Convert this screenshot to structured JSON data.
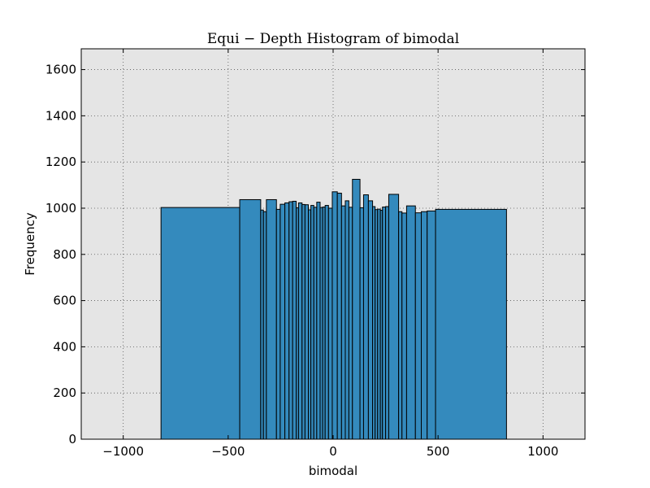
{
  "chart_data": {
    "type": "bar",
    "title": "Equi − Depth Histogram of bimodal",
    "xlabel": "bimodal",
    "ylabel": "Frequency",
    "xlim": [
      -1200,
      1200
    ],
    "ylim": [
      0,
      1690
    ],
    "xticks": [
      -1000,
      -500,
      0,
      500,
      1000
    ],
    "xtick_labels": [
      "−1000",
      "−500",
      "0",
      "500",
      "1000"
    ],
    "yticks": [
      0,
      200,
      400,
      600,
      800,
      1000,
      1200,
      1400,
      1600
    ],
    "ytick_labels": [
      "0",
      "200",
      "400",
      "600",
      "800",
      "1000",
      "1200",
      "1400",
      "1600"
    ],
    "grid": true,
    "legend": "none",
    "colors": {
      "bar_fill": "#348abd",
      "bar_edge": "#000000",
      "plot_background": "#e5e5e5",
      "grid": "#555555"
    },
    "bins": [
      {
        "left": -820,
        "right": -445,
        "count": 1003
      },
      {
        "left": -445,
        "right": -345,
        "count": 1037
      },
      {
        "left": -345,
        "right": -332,
        "count": 992
      },
      {
        "left": -332,
        "right": -318,
        "count": 985
      },
      {
        "left": -318,
        "right": -270,
        "count": 1037
      },
      {
        "left": -270,
        "right": -252,
        "count": 995
      },
      {
        "left": -252,
        "right": -230,
        "count": 1017
      },
      {
        "left": -230,
        "right": -210,
        "count": 1023
      },
      {
        "left": -210,
        "right": -193,
        "count": 1028
      },
      {
        "left": -193,
        "right": -176,
        "count": 1030
      },
      {
        "left": -176,
        "right": -165,
        "count": 1002
      },
      {
        "left": -165,
        "right": -148,
        "count": 1023
      },
      {
        "left": -148,
        "right": -134,
        "count": 1016
      },
      {
        "left": -134,
        "right": -118,
        "count": 1015
      },
      {
        "left": -118,
        "right": -106,
        "count": 993
      },
      {
        "left": -106,
        "right": -92,
        "count": 1012
      },
      {
        "left": -92,
        "right": -78,
        "count": 1004
      },
      {
        "left": -78,
        "right": -62,
        "count": 1026
      },
      {
        "left": -62,
        "right": -50,
        "count": 1003
      },
      {
        "left": -50,
        "right": -38,
        "count": 1005
      },
      {
        "left": -38,
        "right": -22,
        "count": 1012
      },
      {
        "left": -22,
        "right": -4,
        "count": 1000
      },
      {
        "left": -4,
        "right": 20,
        "count": 1071
      },
      {
        "left": 20,
        "right": 40,
        "count": 1065
      },
      {
        "left": 40,
        "right": 58,
        "count": 1010
      },
      {
        "left": 58,
        "right": 75,
        "count": 1032
      },
      {
        "left": 75,
        "right": 92,
        "count": 1004
      },
      {
        "left": 92,
        "right": 128,
        "count": 1125
      },
      {
        "left": 128,
        "right": 145,
        "count": 1002
      },
      {
        "left": 145,
        "right": 168,
        "count": 1058
      },
      {
        "left": 168,
        "right": 188,
        "count": 1032
      },
      {
        "left": 188,
        "right": 200,
        "count": 1007
      },
      {
        "left": 200,
        "right": 212,
        "count": 994
      },
      {
        "left": 212,
        "right": 225,
        "count": 996
      },
      {
        "left": 225,
        "right": 235,
        "count": 991
      },
      {
        "left": 235,
        "right": 250,
        "count": 1005
      },
      {
        "left": 250,
        "right": 265,
        "count": 1007
      },
      {
        "left": 265,
        "right": 312,
        "count": 1060
      },
      {
        "left": 312,
        "right": 328,
        "count": 985
      },
      {
        "left": 328,
        "right": 350,
        "count": 979
      },
      {
        "left": 350,
        "right": 392,
        "count": 1010
      },
      {
        "left": 392,
        "right": 420,
        "count": 980
      },
      {
        "left": 420,
        "right": 448,
        "count": 985
      },
      {
        "left": 448,
        "right": 488,
        "count": 988
      },
      {
        "left": 488,
        "right": 826,
        "count": 995
      }
    ]
  }
}
